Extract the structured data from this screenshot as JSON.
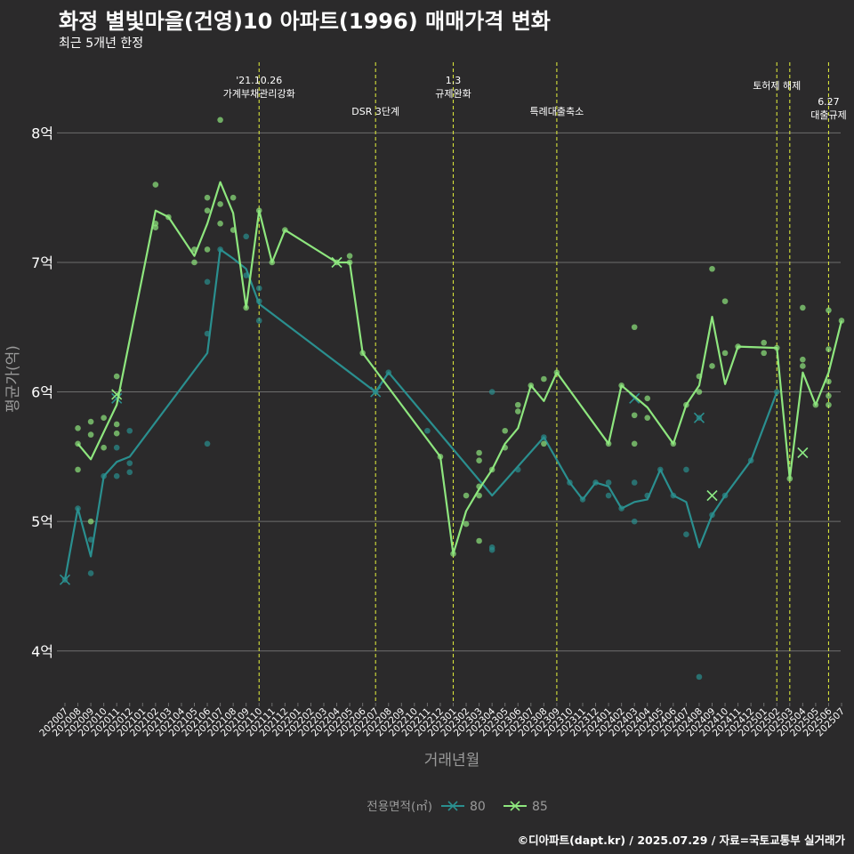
{
  "title": "화정 별빛마을(건영)10 아파트(1996) 매매가격 변화",
  "subtitle": "최근 5개년 한정",
  "caption": "©디아파트(dapt.kr) / 2025.07.29 / 자료=국토교통부 실거래가",
  "colors": {
    "background": "#2b2a2b",
    "grid": "#6e6e6e",
    "series_80": "#2a8f8f",
    "series_85": "#8ee67e",
    "event_line": "#d6e23a",
    "text": "#ffffff",
    "muted": "#9a9a9a"
  },
  "chart_data": {
    "type": "line",
    "xlabel": "거래년월",
    "ylabel": "평균가(억)",
    "x": [
      "202007",
      "202008",
      "202009",
      "202010",
      "202011",
      "202012",
      "202101",
      "202102",
      "202103",
      "202104",
      "202105",
      "202106",
      "202107",
      "202108",
      "202109",
      "202110",
      "202111",
      "202112",
      "202201",
      "202202",
      "202203",
      "202204",
      "202205",
      "202206",
      "202207",
      "202208",
      "202209",
      "202210",
      "202211",
      "202212",
      "202301",
      "202302",
      "202303",
      "202304",
      "202305",
      "202306",
      "202307",
      "202308",
      "202309",
      "202310",
      "202311",
      "202312",
      "202401",
      "202402",
      "202403",
      "202404",
      "202405",
      "202406",
      "202407",
      "202408",
      "202409",
      "202410",
      "202411",
      "202412",
      "202501",
      "202502",
      "202503",
      "202504",
      "202505",
      "202506",
      "202507"
    ],
    "ylim": [
      3.6,
      8.6
    ],
    "yticks": [
      {
        "value": 4,
        "label": "4억"
      },
      {
        "value": 5,
        "label": "5억"
      },
      {
        "value": 6,
        "label": "6억"
      },
      {
        "value": 7,
        "label": "7억"
      },
      {
        "value": 8,
        "label": "8억"
      }
    ],
    "legend": {
      "title": "전용면적(㎡)",
      "position": "bottom"
    },
    "series": [
      {
        "name": "80",
        "color": "#2a8f8f",
        "line": [
          [
            "202007",
            4.55
          ],
          [
            "202008",
            5.1
          ],
          [
            "202009",
            4.73
          ],
          [
            "202010",
            5.35
          ],
          [
            "202011",
            5.46
          ],
          [
            "202012",
            5.5
          ],
          [
            "202106",
            6.3
          ],
          [
            "202107",
            7.1
          ],
          [
            "202108",
            7.03
          ],
          [
            "202109",
            6.95
          ],
          [
            "202110",
            6.68
          ],
          [
            "202207",
            6.0
          ],
          [
            "202208",
            6.15
          ],
          [
            "202304",
            5.2
          ],
          [
            "202308",
            5.65
          ],
          [
            "202310",
            5.3
          ],
          [
            "202311",
            5.17
          ],
          [
            "202312",
            5.3
          ],
          [
            "202401",
            5.27
          ],
          [
            "202402",
            5.1
          ],
          [
            "202403",
            5.15
          ],
          [
            "202404",
            5.17
          ],
          [
            "202405",
            5.4
          ],
          [
            "202406",
            5.2
          ],
          [
            "202407",
            5.15
          ],
          [
            "202408",
            4.8
          ],
          [
            "202409",
            5.05
          ],
          [
            "202410",
            5.2
          ],
          [
            "202412",
            5.47
          ],
          [
            "202502",
            6.0
          ]
        ],
        "points": [
          [
            "202007",
            4.55
          ],
          [
            "202008",
            5.1
          ],
          [
            "202009",
            4.86
          ],
          [
            "202009",
            4.6
          ],
          [
            "202010",
            5.35
          ],
          [
            "202011",
            5.57
          ],
          [
            "202011",
            5.35
          ],
          [
            "202012",
            5.7
          ],
          [
            "202012",
            5.45
          ],
          [
            "202012",
            5.38
          ],
          [
            "202106",
            6.85
          ],
          [
            "202106",
            6.45
          ],
          [
            "202106",
            5.6
          ],
          [
            "202107",
            7.1
          ],
          [
            "202109",
            7.2
          ],
          [
            "202109",
            6.9
          ],
          [
            "202110",
            6.8
          ],
          [
            "202110",
            6.7
          ],
          [
            "202110",
            6.55
          ],
          [
            "202207",
            6.0
          ],
          [
            "202208",
            6.15
          ],
          [
            "202211",
            5.7
          ],
          [
            "202304",
            6.0
          ],
          [
            "202304",
            4.8
          ],
          [
            "202304",
            4.78
          ],
          [
            "202306",
            5.4
          ],
          [
            "202308",
            5.65
          ],
          [
            "202310",
            5.3
          ],
          [
            "202311",
            5.17
          ],
          [
            "202312",
            5.3
          ],
          [
            "202401",
            5.3
          ],
          [
            "202401",
            5.2
          ],
          [
            "202402",
            5.1
          ],
          [
            "202403",
            5.3
          ],
          [
            "202403",
            5.0
          ],
          [
            "202404",
            5.2
          ],
          [
            "202405",
            5.4
          ],
          [
            "202406",
            5.2
          ],
          [
            "202407",
            5.4
          ],
          [
            "202407",
            4.9
          ],
          [
            "202408",
            3.8
          ],
          [
            "202408",
            5.8
          ],
          [
            "202409",
            5.05
          ],
          [
            "202410",
            5.2
          ],
          [
            "202412",
            5.47
          ],
          [
            "202502",
            6.0
          ]
        ],
        "markers": [
          [
            "202007",
            4.55
          ],
          [
            "202011",
            5.95
          ],
          [
            "202204",
            7.0
          ],
          [
            "202207",
            6.0
          ],
          [
            "202403",
            5.95
          ],
          [
            "202408",
            5.8
          ],
          [
            "202409",
            5.2
          ],
          [
            "202504",
            5.53
          ]
        ]
      },
      {
        "name": "85",
        "color": "#8ee67e",
        "line": [
          [
            "202008",
            5.6
          ],
          [
            "202009",
            5.48
          ],
          [
            "202011",
            5.9
          ],
          [
            "202102",
            7.4
          ],
          [
            "202103",
            7.35
          ],
          [
            "202105",
            7.05
          ],
          [
            "202106",
            7.3
          ],
          [
            "202107",
            7.62
          ],
          [
            "202108",
            7.38
          ],
          [
            "202109",
            6.65
          ],
          [
            "202110",
            7.4
          ],
          [
            "202111",
            7.0
          ],
          [
            "202112",
            7.25
          ],
          [
            "202204",
            7.0
          ],
          [
            "202205",
            7.0
          ],
          [
            "202206",
            6.3
          ],
          [
            "202212",
            5.5
          ],
          [
            "202301",
            4.75
          ],
          [
            "202302",
            5.08
          ],
          [
            "202303",
            5.25
          ],
          [
            "202304",
            5.4
          ],
          [
            "202305",
            5.6
          ],
          [
            "202306",
            5.72
          ],
          [
            "202307",
            6.05
          ],
          [
            "202308",
            5.93
          ],
          [
            "202309",
            6.15
          ],
          [
            "202401",
            5.6
          ],
          [
            "202402",
            6.05
          ],
          [
            "202404",
            5.88
          ],
          [
            "202406",
            5.6
          ],
          [
            "202407",
            5.9
          ],
          [
            "202408",
            6.05
          ],
          [
            "202409",
            6.58
          ],
          [
            "202410",
            6.06
          ],
          [
            "202411",
            6.35
          ],
          [
            "202502",
            6.34
          ],
          [
            "202503",
            5.33
          ],
          [
            "202504",
            6.15
          ],
          [
            "202505",
            5.9
          ],
          [
            "202506",
            6.15
          ],
          [
            "202507",
            6.55
          ]
        ],
        "points": [
          [
            "202008",
            5.72
          ],
          [
            "202008",
            5.6
          ],
          [
            "202008",
            5.4
          ],
          [
            "202009",
            5.77
          ],
          [
            "202009",
            5.67
          ],
          [
            "202009",
            5.0
          ],
          [
            "202010",
            5.8
          ],
          [
            "202010",
            5.57
          ],
          [
            "202011",
            6.12
          ],
          [
            "202011",
            5.75
          ],
          [
            "202011",
            5.68
          ],
          [
            "202102",
            7.6
          ],
          [
            "202102",
            7.3
          ],
          [
            "202102",
            7.27
          ],
          [
            "202103",
            7.35
          ],
          [
            "202105",
            7.1
          ],
          [
            "202105",
            7.0
          ],
          [
            "202106",
            7.5
          ],
          [
            "202106",
            7.4
          ],
          [
            "202106",
            7.1
          ],
          [
            "202107",
            8.1
          ],
          [
            "202107",
            7.45
          ],
          [
            "202107",
            7.3
          ],
          [
            "202108",
            7.5
          ],
          [
            "202108",
            7.25
          ],
          [
            "202109",
            6.65
          ],
          [
            "202110",
            7.4
          ],
          [
            "202111",
            7.0
          ],
          [
            "202112",
            7.25
          ],
          [
            "202204",
            7.0
          ],
          [
            "202205",
            7.05
          ],
          [
            "202205",
            7.0
          ],
          [
            "202206",
            6.3
          ],
          [
            "202212",
            5.5
          ],
          [
            "202301",
            4.75
          ],
          [
            "202302",
            5.2
          ],
          [
            "202302",
            4.98
          ],
          [
            "202303",
            5.53
          ],
          [
            "202303",
            5.47
          ],
          [
            "202303",
            5.27
          ],
          [
            "202303",
            5.2
          ],
          [
            "202303",
            4.85
          ],
          [
            "202304",
            5.4
          ],
          [
            "202305",
            5.7
          ],
          [
            "202305",
            5.57
          ],
          [
            "202306",
            5.9
          ],
          [
            "202306",
            5.85
          ],
          [
            "202307",
            6.05
          ],
          [
            "202308",
            6.1
          ],
          [
            "202308",
            5.6
          ],
          [
            "202309",
            6.15
          ],
          [
            "202401",
            5.6
          ],
          [
            "202402",
            6.05
          ],
          [
            "202403",
            6.5
          ],
          [
            "202403",
            5.82
          ],
          [
            "202403",
            5.6
          ],
          [
            "202404",
            5.95
          ],
          [
            "202404",
            5.8
          ],
          [
            "202406",
            5.6
          ],
          [
            "202407",
            5.9
          ],
          [
            "202408",
            6.12
          ],
          [
            "202408",
            6.0
          ],
          [
            "202409",
            6.95
          ],
          [
            "202409",
            6.2
          ],
          [
            "202410",
            6.7
          ],
          [
            "202410",
            6.3
          ],
          [
            "202411",
            6.35
          ],
          [
            "202501",
            6.38
          ],
          [
            "202501",
            6.3
          ],
          [
            "202502",
            6.34
          ],
          [
            "202503",
            5.33
          ],
          [
            "202504",
            6.65
          ],
          [
            "202504",
            6.25
          ],
          [
            "202504",
            6.2
          ],
          [
            "202505",
            5.9
          ],
          [
            "202506",
            6.63
          ],
          [
            "202506",
            6.33
          ],
          [
            "202506",
            6.08
          ],
          [
            "202506",
            5.97
          ],
          [
            "202506",
            5.9
          ],
          [
            "202507",
            6.55
          ]
        ],
        "markers": [
          [
            "202011",
            5.98
          ],
          [
            "202204",
            7.0
          ],
          [
            "202409",
            5.2
          ],
          [
            "202504",
            5.53
          ]
        ]
      }
    ],
    "events": [
      {
        "x": "202110",
        "label": "'21.10.26\n가계부채관리강화",
        "row": 0
      },
      {
        "x": "202207",
        "label": "DSR 3단계",
        "row": 2
      },
      {
        "x": "202301",
        "label": "1.3\n규제완화",
        "row": 0
      },
      {
        "x": "202309",
        "label": "특례대출축소",
        "row": 2
      },
      {
        "x": "202502",
        "label": "토허제 해제",
        "row": 1
      },
      {
        "x": "202503",
        "label": "",
        "row": 1
      },
      {
        "x": "202506",
        "label": "6.27\n대출규제",
        "row": 3
      }
    ]
  }
}
